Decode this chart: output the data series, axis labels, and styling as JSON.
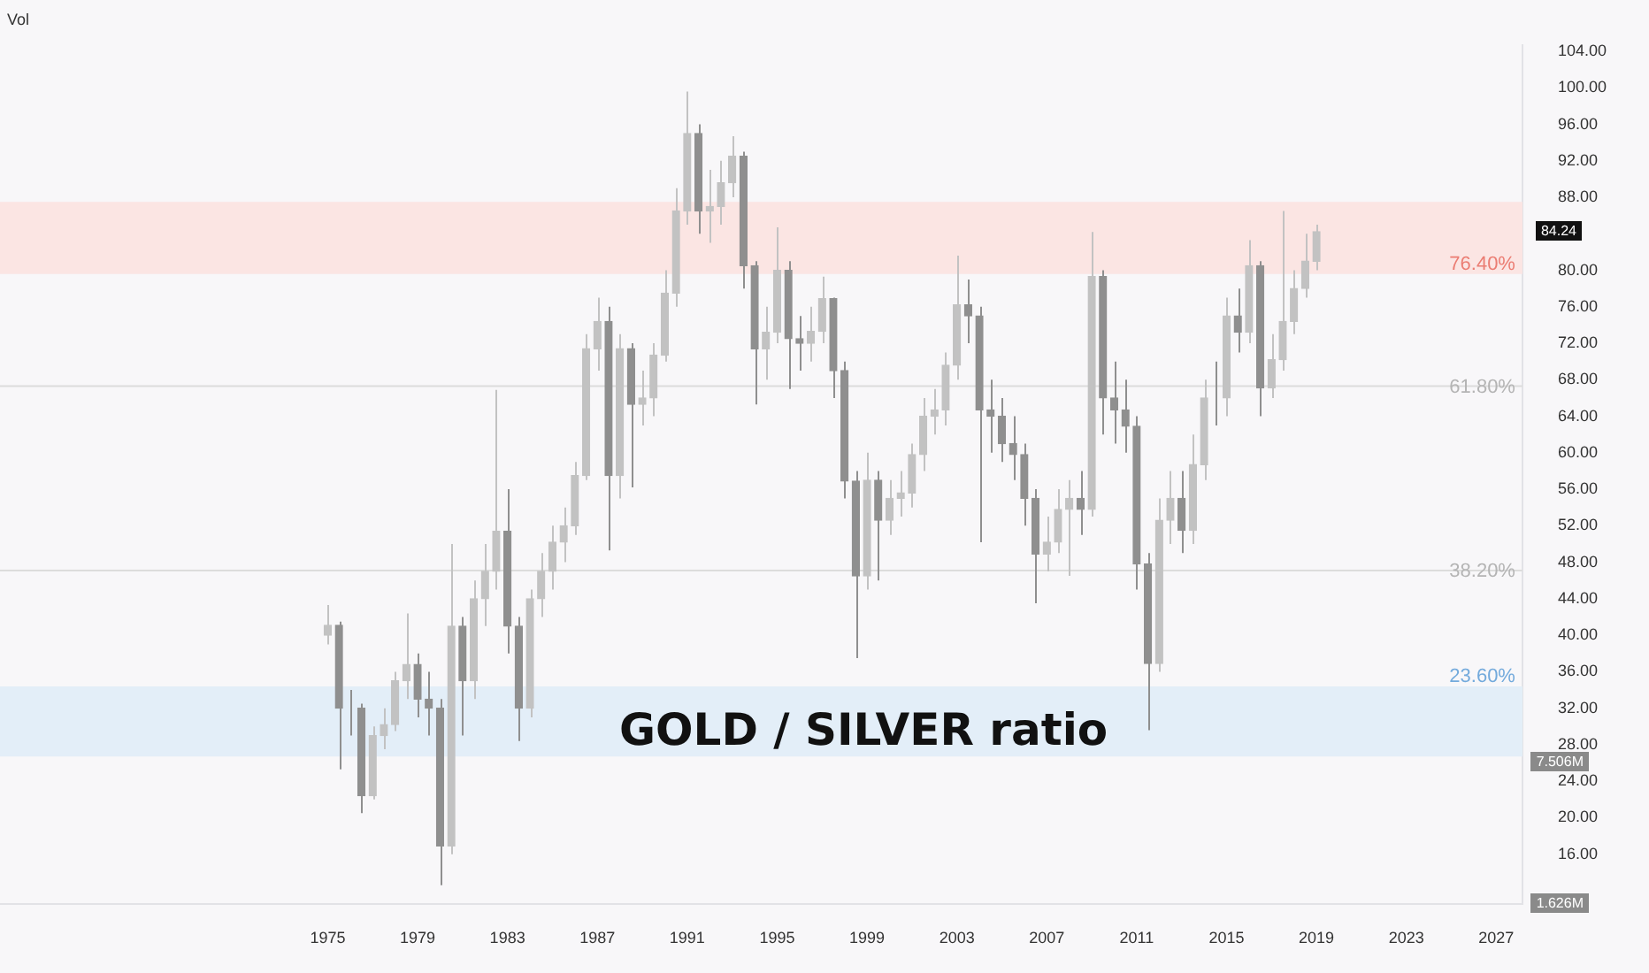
{
  "chart_data": {
    "type": "candlestick",
    "title": "GOLD / SILVER ratio",
    "x": [
      "1975-01",
      "1975-07",
      "1976-01",
      "1976-07",
      "1977-01",
      "1977-07",
      "1978-01",
      "1978-07",
      "1979-01",
      "1979-07",
      "1980-01",
      "1980-07",
      "1981-01",
      "1981-07",
      "1982-01",
      "1982-07",
      "1983-01",
      "1983-07",
      "1984-01",
      "1984-07",
      "1985-01",
      "1985-07",
      "1986-01",
      "1986-07",
      "1987-01",
      "1987-07",
      "1988-01",
      "1988-07",
      "1989-01",
      "1989-07",
      "1990-01",
      "1990-07",
      "1991-01",
      "1991-07",
      "1992-01",
      "1992-07",
      "1993-01",
      "1993-07",
      "1994-01",
      "1994-07",
      "1995-01",
      "1995-07",
      "1996-01",
      "1996-07",
      "1997-01",
      "1997-07",
      "1998-01",
      "1998-07",
      "1999-01",
      "1999-07",
      "2000-01",
      "2000-07",
      "2001-01",
      "2001-07",
      "2002-01",
      "2002-07",
      "2003-01",
      "2003-07",
      "2004-01",
      "2004-07",
      "2005-01",
      "2005-07",
      "2006-01",
      "2006-07",
      "2007-01",
      "2007-07",
      "2008-01",
      "2008-07",
      "2009-01",
      "2009-07",
      "2010-01",
      "2010-07",
      "2011-01",
      "2011-07",
      "2012-01",
      "2012-07",
      "2013-01",
      "2013-07",
      "2014-01",
      "2014-07",
      "2015-01",
      "2015-07",
      "2016-01",
      "2016-07",
      "2017-01",
      "2017-07",
      "2018-01",
      "2018-07",
      "2019-01"
    ],
    "ohlc": [
      [
        40,
        43.3,
        39,
        41.1
      ],
      [
        41.1,
        41.5,
        25.3,
        32
      ],
      [
        32,
        34,
        29,
        32
      ],
      [
        32,
        32.5,
        20.5,
        22.4
      ],
      [
        22.4,
        30,
        22,
        29
      ],
      [
        29,
        32,
        27.5,
        30.2
      ],
      [
        30.2,
        36,
        29.5,
        35
      ],
      [
        35,
        42.4,
        33,
        36.8
      ],
      [
        36.8,
        38,
        31,
        33
      ],
      [
        33,
        36,
        29,
        32
      ],
      [
        32,
        33,
        12.6,
        16.9
      ],
      [
        16.9,
        50,
        16,
        41
      ],
      [
        41,
        42,
        29,
        35
      ],
      [
        35,
        46,
        33,
        44
      ],
      [
        44,
        50,
        41,
        47
      ],
      [
        47,
        66.9,
        45,
        51.4
      ],
      [
        51.4,
        56,
        38,
        41
      ],
      [
        41,
        42,
        28.4,
        32
      ],
      [
        32,
        45,
        31,
        44
      ],
      [
        44,
        49,
        42,
        47
      ],
      [
        47,
        52,
        45,
        50.2
      ],
      [
        50.2,
        54,
        48,
        52
      ],
      [
        52,
        59,
        51,
        57.5
      ],
      [
        57.5,
        73,
        57,
        71.4
      ],
      [
        71.4,
        77,
        69,
        74.4
      ],
      [
        74.4,
        76,
        49.3,
        57.5
      ],
      [
        57.5,
        73,
        55,
        71.4
      ],
      [
        71.4,
        72,
        56.2,
        65.3
      ],
      [
        65.3,
        69,
        63,
        66
      ],
      [
        66,
        72,
        64,
        70.7
      ],
      [
        70.7,
        80,
        70,
        77.5
      ],
      [
        77.5,
        89,
        76,
        86.5
      ],
      [
        86.5,
        99.6,
        85,
        95
      ],
      [
        95,
        96,
        84,
        86.5
      ],
      [
        86.5,
        91,
        83,
        87
      ],
      [
        87,
        92,
        85,
        89.6
      ],
      [
        89.6,
        94.7,
        88,
        92.5
      ],
      [
        92.5,
        93,
        78,
        80.5
      ],
      [
        80.5,
        81,
        65.3,
        71.4
      ],
      [
        71.4,
        76,
        68,
        73.2
      ],
      [
        73.2,
        84.7,
        72,
        80
      ],
      [
        80,
        81,
        67,
        72.5
      ],
      [
        72.5,
        75,
        69,
        72
      ],
      [
        72,
        76,
        70,
        73.3
      ],
      [
        73.3,
        79.3,
        72,
        76.9
      ],
      [
        76.9,
        77,
        66,
        69
      ],
      [
        69,
        70,
        55,
        56.9
      ],
      [
        56.9,
        58,
        37.5,
        46.5
      ],
      [
        46.5,
        60,
        45,
        57
      ],
      [
        57,
        58,
        46,
        52.6
      ],
      [
        52.6,
        57,
        51,
        55
      ],
      [
        55,
        58,
        53,
        55.6
      ],
      [
        55.6,
        61,
        54,
        59.8
      ],
      [
        59.8,
        66,
        58,
        64
      ],
      [
        64,
        67,
        62,
        64.7
      ],
      [
        64.7,
        71,
        63,
        69.6
      ],
      [
        69.6,
        81.6,
        68,
        76.2
      ],
      [
        76.2,
        79,
        72,
        75
      ],
      [
        75,
        76,
        50.2,
        64.7
      ],
      [
        64.7,
        68,
        60,
        64
      ],
      [
        64,
        66,
        59,
        61
      ],
      [
        61,
        64,
        57,
        59.8
      ],
      [
        59.8,
        61,
        52,
        55
      ],
      [
        55,
        56,
        43.5,
        48.9
      ],
      [
        48.9,
        53,
        47,
        50.2
      ],
      [
        50.2,
        56,
        49,
        53.8
      ],
      [
        53.8,
        57,
        46.5,
        55
      ],
      [
        55,
        58,
        51,
        53.8
      ],
      [
        53.8,
        84.2,
        53,
        79.3
      ],
      [
        79.3,
        80,
        62,
        66
      ],
      [
        66,
        70,
        61,
        64.7
      ],
      [
        64.7,
        68,
        60,
        62.9
      ],
      [
        62.9,
        64,
        45,
        47.8
      ],
      [
        47.8,
        49,
        29.6,
        36.9
      ],
      [
        36.9,
        55,
        36,
        52.6
      ],
      [
        52.6,
        58,
        50,
        55
      ],
      [
        55,
        58,
        49,
        51.5
      ],
      [
        51.5,
        62,
        50,
        58.7
      ],
      [
        58.7,
        68,
        57,
        66
      ],
      [
        66,
        70,
        63,
        66
      ],
      [
        66,
        77,
        64,
        75
      ],
      [
        75,
        78,
        71,
        73.2
      ],
      [
        73.2,
        83.3,
        72,
        80.5
      ],
      [
        80.5,
        81,
        64,
        67.1
      ],
      [
        67.1,
        73,
        66,
        70.2
      ],
      [
        70.2,
        86.5,
        69,
        74.4
      ],
      [
        74.4,
        80,
        73,
        78
      ],
      [
        78,
        84,
        77,
        81
      ],
      [
        81,
        85,
        80,
        84.24
      ]
    ],
    "colors": [
      "#c2c2c2",
      "#8f8f8f",
      "#8f8f8f",
      "#8f8f8f",
      "#c2c2c2",
      "#c2c2c2",
      "#c2c2c2",
      "#c2c2c2",
      "#8f8f8f",
      "#8f8f8f",
      "#8f8f8f",
      "#c2c2c2",
      "#8f8f8f",
      "#c2c2c2",
      "#c2c2c2",
      "#c2c2c2",
      "#8f8f8f",
      "#8f8f8f",
      "#c2c2c2",
      "#c2c2c2",
      "#c2c2c2",
      "#c2c2c2",
      "#c2c2c2",
      "#c2c2c2",
      "#c2c2c2",
      "#8f8f8f",
      "#c2c2c2",
      "#8f8f8f",
      "#c2c2c2",
      "#c2c2c2",
      "#c2c2c2",
      "#c2c2c2",
      "#c2c2c2",
      "#8f8f8f",
      "#c2c2c2",
      "#c2c2c2",
      "#c2c2c2",
      "#8f8f8f",
      "#8f8f8f",
      "#c2c2c2",
      "#c2c2c2",
      "#8f8f8f",
      "#8f8f8f",
      "#c2c2c2",
      "#c2c2c2",
      "#8f8f8f",
      "#8f8f8f",
      "#8f8f8f",
      "#c2c2c2",
      "#8f8f8f",
      "#c2c2c2",
      "#c2c2c2",
      "#c2c2c2",
      "#c2c2c2",
      "#c2c2c2",
      "#c2c2c2",
      "#c2c2c2",
      "#8f8f8f",
      "#8f8f8f",
      "#8f8f8f",
      "#8f8f8f",
      "#8f8f8f",
      "#8f8f8f",
      "#8f8f8f",
      "#c2c2c2",
      "#c2c2c2",
      "#c2c2c2",
      "#8f8f8f",
      "#c2c2c2",
      "#8f8f8f",
      "#8f8f8f",
      "#8f8f8f",
      "#8f8f8f",
      "#8f8f8f",
      "#c2c2c2",
      "#c2c2c2",
      "#8f8f8f",
      "#c2c2c2",
      "#c2c2c2",
      "#8f8f8f",
      "#c2c2c2",
      "#8f8f8f",
      "#c2c2c2",
      "#8f8f8f",
      "#c2c2c2",
      "#c2c2c2",
      "#c2c2c2",
      "#c2c2c2",
      "#c2c2c2"
    ],
    "xlim": [
      "1960-06",
      "2028-03"
    ],
    "xticks": [
      "1975",
      "1979",
      "1983",
      "1987",
      "1991",
      "1995",
      "1999",
      "2003",
      "2007",
      "2011",
      "2015",
      "2019",
      "2023",
      "2027"
    ],
    "ylim": [
      10.5,
      104.7
    ],
    "yticks": [
      {
        "value": 16,
        "label": "16.00"
      },
      {
        "value": 20,
        "label": "20.00"
      },
      {
        "value": 24,
        "label": "24.00"
      },
      {
        "value": 28,
        "label": "28.00"
      },
      {
        "value": 32,
        "label": "32.00"
      },
      {
        "value": 36,
        "label": "36.00"
      },
      {
        "value": 40,
        "label": "40.00"
      },
      {
        "value": 44,
        "label": "44.00"
      },
      {
        "value": 48,
        "label": "48.00"
      },
      {
        "value": 52,
        "label": "52.00"
      },
      {
        "value": 56,
        "label": "56.00"
      },
      {
        "value": 60,
        "label": "60.00"
      },
      {
        "value": 64,
        "label": "64.00"
      },
      {
        "value": 68,
        "label": "68.00"
      },
      {
        "value": 72,
        "label": "72.00"
      },
      {
        "value": 76,
        "label": "76.00"
      },
      {
        "value": 80,
        "label": "80.00"
      },
      {
        "value": 88,
        "label": "88.00"
      },
      {
        "value": 92,
        "label": "92.00"
      },
      {
        "value": 96,
        "label": "96.00"
      },
      {
        "value": 100,
        "label": "100.00"
      },
      {
        "value": 104,
        "label": "104.00"
      }
    ],
    "bands": [
      {
        "axis": "y",
        "from": 79.6,
        "to": 87.5,
        "label": "76.40%",
        "color": "#fbe5e3"
      },
      {
        "axis": "y",
        "from": 26.7,
        "to": 34.4,
        "label": "23.60%",
        "color": "#e3eef8"
      }
    ],
    "ref_lines": [
      {
        "axis": "y",
        "value": 67.3,
        "color": "#dcdcdc"
      },
      {
        "axis": "y",
        "value": 47.1,
        "color": "#dcdcdc"
      }
    ],
    "annotations": [
      "Vol",
      "84.24",
      "7.506M",
      "1.626M",
      {
        "text": "61.80%",
        "y": 67.3
      },
      {
        "text": "38.20%",
        "y": 47.1
      }
    ],
    "grid": false,
    "legend": false
  }
}
